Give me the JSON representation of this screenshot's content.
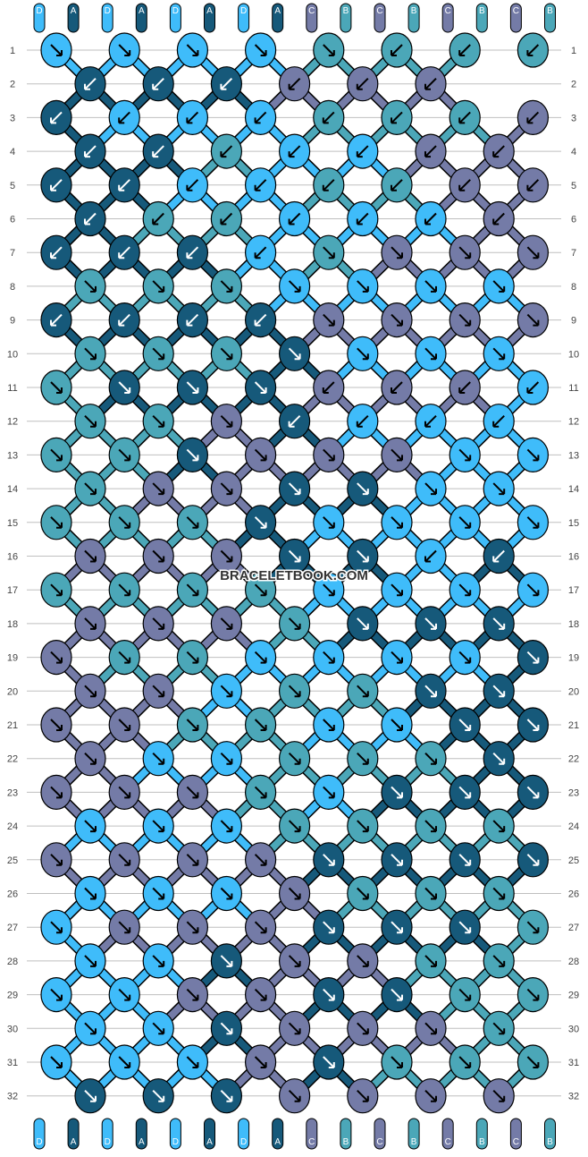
{
  "colors": {
    "A": "#16597a",
    "B": "#4ba7b8",
    "C": "#747ba7",
    "D": "#3fbcfa",
    "strand_outline": "#000000",
    "grid_line": "#bfbfbf",
    "row_number": "#444444",
    "watermark": "#333333"
  },
  "watermark": "BRACELETBOOK.COM",
  "strand_labels_top": [
    "D",
    "A",
    "D",
    "A",
    "D",
    "A",
    "D",
    "A",
    "C",
    "B",
    "C",
    "B",
    "C",
    "B",
    "C",
    "B"
  ],
  "strand_labels_bottom": [
    "D",
    "A",
    "D",
    "A",
    "D",
    "A",
    "D",
    "A",
    "C",
    "B",
    "C",
    "B",
    "C",
    "B",
    "C",
    "B"
  ],
  "row_numbers": [
    "1",
    "2",
    "3",
    "4",
    "5",
    "6",
    "7",
    "8",
    "9",
    "10",
    "11",
    "12",
    "13",
    "14",
    "15",
    "16",
    "17",
    "18",
    "19",
    "20",
    "21",
    "22",
    "23",
    "24",
    "25",
    "26",
    "27",
    "28",
    "29",
    "30",
    "31",
    "32"
  ],
  "knot_rows": [
    "aaaaabbbb",
    "cccccccc",
    "bbbbccccc",
    "cccbcccc",
    "bbbbcbccb",
    "bcccbbbcc",
    "bbbbaaaab",
    "aaaaaaaa",
    "bbbbaaaab",
    "aaaaaaaa",
    "aaaabbbba",
    "aaabbbbbb",
    "aaaaaaaaa",
    "aaaaaaaa",
    "aaaaaaaaa",
    "aaaaabcc",
    "aaaaaaaaa",
    "aaaaaaaa",
    "aaaaaaaaa",
    "aaaaaaaa",
    "aaaaaaaaa",
    "aaaaaaaa",
    "aaaaaaaaa",
    "aaaaaaaa",
    "aaaaaaaaa",
    "aaaaaaaa",
    "aaaaaaaaa",
    "aaaaaaaa",
    "aaaaaaaaa",
    "aaaaaaaa",
    "aaaaaaaaa",
    "aaaaaaaa"
  ],
  "knot_colors": [
    "DDDDBBBB",
    "AAACCC",
    "ADDDBBBC",
    "AABDDCC",
    "AADDBBCC",
    "ABBDDDC",
    "AAADBCCC",
    "BBBDDDD",
    "AAAACCCC",
    "BBBADDD",
    "BAAACCCD",
    "BBCADDD",
    "BBACCCDD",
    "BCCAADD",
    "BBBADDDD",
    "CCCAADA",
    "BBBBDDDD",
    "CCCBAAA",
    "CBBDDDDA",
    "CCDBBAA",
    "CCBBDDAA",
    "CDDBBBA",
    "CCCBDAAA",
    "DDDBBBB",
    "CCCCAAAA",
    "DDDCBBB",
    "DCCCAAAB",
    "DDACCBB",
    "DDCCAABB",
    "DDACCCB",
    "DDDCABBB",
    "AAACCCC"
  ]
}
